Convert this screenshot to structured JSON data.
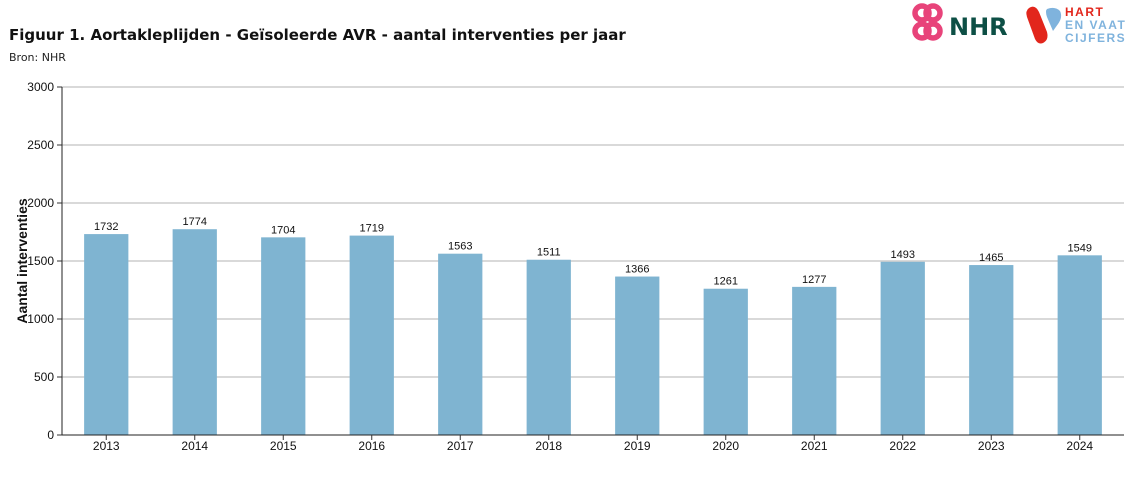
{
  "figure": {
    "title": "Figuur 1. Aortakleplijden - Geïsoleerde AVR - aantal interventies per jaar",
    "source": "Bron: NHR"
  },
  "logos": {
    "nhr_text": "NHR",
    "hart_line1": "HART",
    "hart_line2": "EN VAAT",
    "hart_line3": "CIJFERS",
    "nhr_color": "#e8437a",
    "nhr_text_color": "#0d4f45",
    "hart_red": "#e2261c",
    "hart_blue": "#7fb3dd"
  },
  "chart_data": {
    "type": "bar",
    "categories": [
      "2013",
      "2014",
      "2015",
      "2016",
      "2017",
      "2018",
      "2019",
      "2020",
      "2021",
      "2022",
      "2023",
      "2024"
    ],
    "values": [
      1732,
      1774,
      1704,
      1719,
      1563,
      1511,
      1366,
      1261,
      1277,
      1493,
      1465,
      1549
    ],
    "ylabel": "Aantal interventies",
    "xlabel": "",
    "ylim": [
      0,
      3000
    ],
    "yticks": [
      0,
      500,
      1000,
      1500,
      2000,
      2500,
      3000
    ],
    "grid": true,
    "bar_color": "#7fb4d1",
    "data_labels": true
  }
}
